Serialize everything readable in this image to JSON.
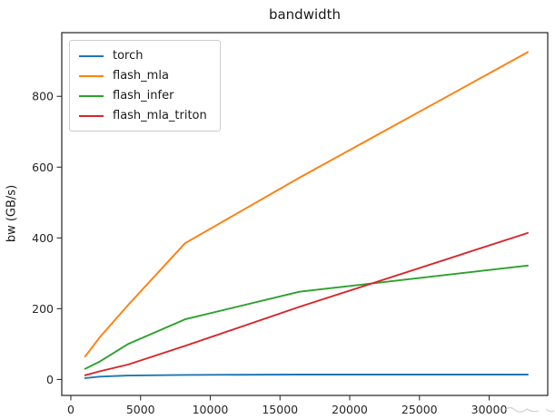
{
  "figure": {
    "title": "bandwidth",
    "ylabel": "bw (GB/s)",
    "xlabel": ""
  },
  "chart_data": {
    "type": "line",
    "title": "bandwidth",
    "xlabel": "",
    "ylabel": "bw (GB/s)",
    "x": [
      1024,
      2048,
      4096,
      8192,
      16384,
      32768
    ],
    "series": [
      {
        "name": "torch",
        "color": "#1f77b4",
        "values": [
          4,
          8,
          11,
          13,
          14,
          14
        ]
      },
      {
        "name": "flash_mla",
        "color": "#ff7f0e",
        "values": [
          65,
          118,
          210,
          385,
          570,
          925
        ]
      },
      {
        "name": "flash_infer",
        "color": "#2ca02c",
        "values": [
          30,
          50,
          100,
          170,
          248,
          322
        ]
      },
      {
        "name": "flash_mla_triton",
        "color": "#d62728",
        "values": [
          12,
          23,
          42,
          95,
          205,
          414
        ]
      }
    ],
    "xticks": [
      0,
      5000,
      10000,
      15000,
      20000,
      25000,
      30000
    ],
    "yticks": [
      0,
      200,
      400,
      600,
      800
    ],
    "xlim": [
      -650,
      34200
    ],
    "ylim": [
      -45,
      980
    ],
    "grid": false,
    "legend_position": "upper left"
  }
}
